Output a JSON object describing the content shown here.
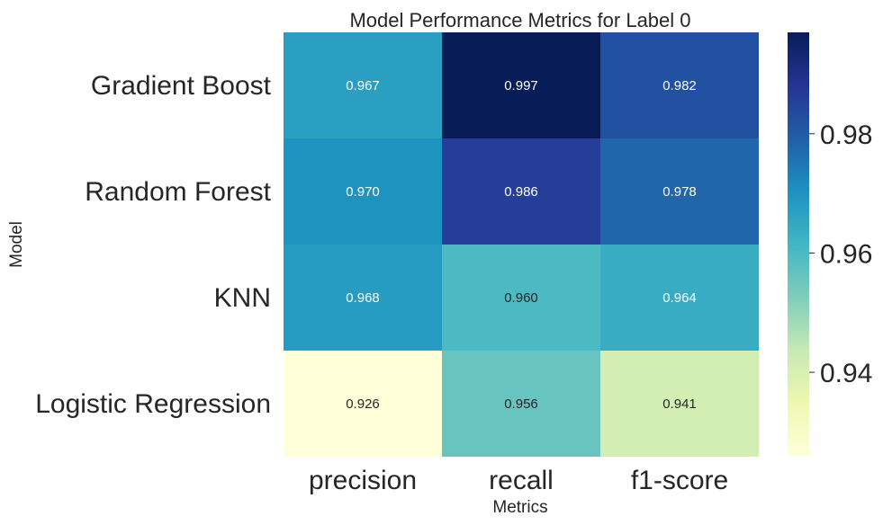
{
  "chart_data": {
    "type": "heatmap",
    "title": "Model Performance Metrics for Label 0",
    "xlabel": "Metrics",
    "ylabel": "Model",
    "columns": [
      "precision",
      "recall",
      "f1-score"
    ],
    "rows": [
      "Gradient Boost",
      "Random Forest",
      "KNN",
      "Logistic Regression"
    ],
    "values": [
      [
        0.967,
        0.997,
        0.982
      ],
      [
        0.97,
        0.986,
        0.978
      ],
      [
        0.968,
        0.96,
        0.964
      ],
      [
        0.926,
        0.956,
        0.941
      ]
    ],
    "annotations": [
      [
        "0.967",
        "0.997",
        "0.982"
      ],
      [
        "0.970",
        "0.986",
        "0.978"
      ],
      [
        "0.968",
        "0.960",
        "0.964"
      ],
      [
        "0.926",
        "0.956",
        "0.941"
      ]
    ],
    "colormap": "YlGnBu",
    "color_range": [
      0.926,
      0.997
    ],
    "colorbar_ticks": [
      0.94,
      0.96,
      0.98
    ],
    "colorbar_tick_labels": [
      "0.94",
      "0.96",
      "0.98"
    ],
    "legend_placement": "right",
    "grid": false
  }
}
